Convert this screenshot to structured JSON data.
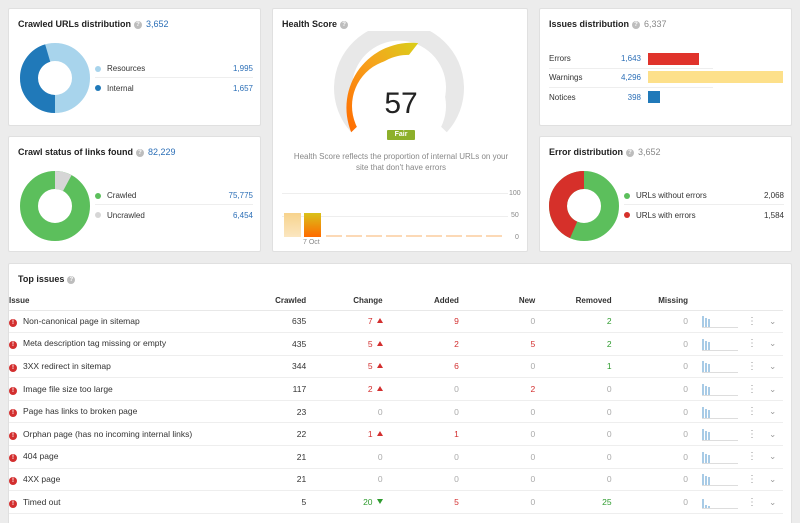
{
  "crawled": {
    "title": "Crawled URLs distribution",
    "total": "3,652",
    "legend": [
      {
        "label": "Resources",
        "value": "1,995",
        "color": "#a8d4ec"
      },
      {
        "label": "Internal",
        "value": "1,657",
        "color": "#2079b9"
      }
    ]
  },
  "health": {
    "title": "Health Score",
    "score": "57",
    "badge": "Fair",
    "description": "Health Score reflects the proportion of internal URLs on your site that don't have errors",
    "axis": [
      "100",
      "50",
      "0"
    ],
    "date_label": "7 Oct"
  },
  "issues_dist": {
    "title": "Issues distribution",
    "total": "6,337",
    "rows": [
      {
        "label": "Errors",
        "value": "1,643",
        "color": "#e0332b",
        "fraction": 0.38
      },
      {
        "label": "Warnings",
        "value": "4,296",
        "color": "#fde08a",
        "fraction": 1.0
      },
      {
        "label": "Notices",
        "value": "398",
        "color": "#2079b9",
        "fraction": 0.09
      }
    ]
  },
  "crawl_status": {
    "title": "Crawl status of links found",
    "total": "82,229",
    "legend": [
      {
        "label": "Crawled",
        "value": "75,775",
        "color": "#5cbf5c"
      },
      {
        "label": "Uncrawled",
        "value": "6,454",
        "color": "#d6d6d6"
      }
    ]
  },
  "error_dist": {
    "title": "Error distribution",
    "total": "3,652",
    "legend": [
      {
        "label": "URLs without errors",
        "value": "2,068",
        "color": "#5cbf5c"
      },
      {
        "label": "URLs with errors",
        "value": "1,584",
        "color": "#d6302a"
      }
    ]
  },
  "top_issues": {
    "title": "Top issues",
    "columns": {
      "issue": "Issue",
      "crawled": "Crawled",
      "change": "Change",
      "added": "Added",
      "new": "New",
      "removed": "Removed",
      "missing": "Missing"
    },
    "rows": [
      {
        "issue": "Non-canonical page in sitemap",
        "crawled": "635",
        "change": "7",
        "change_dir": "up",
        "added": "9",
        "new": "0",
        "removed": "2",
        "missing": "0"
      },
      {
        "issue": "Meta description tag missing or empty",
        "crawled": "435",
        "change": "5",
        "change_dir": "up",
        "added": "2",
        "new": "5",
        "removed": "2",
        "missing": "0"
      },
      {
        "issue": "3XX redirect in sitemap",
        "crawled": "344",
        "change": "5",
        "change_dir": "up",
        "added": "6",
        "new": "0",
        "removed": "1",
        "missing": "0"
      },
      {
        "issue": "Image file size too large",
        "crawled": "117",
        "change": "2",
        "change_dir": "up",
        "added": "0",
        "new": "2",
        "removed": "0",
        "missing": "0"
      },
      {
        "issue": "Page has links to broken page",
        "crawled": "23",
        "change": "0",
        "change_dir": "none",
        "added": "0",
        "new": "0",
        "removed": "0",
        "missing": "0"
      },
      {
        "issue": "Orphan page (has no incoming internal links)",
        "crawled": "22",
        "change": "1",
        "change_dir": "up",
        "added": "1",
        "new": "0",
        "removed": "0",
        "missing": "0"
      },
      {
        "issue": "404 page",
        "crawled": "21",
        "change": "0",
        "change_dir": "none",
        "added": "0",
        "new": "0",
        "removed": "0",
        "missing": "0"
      },
      {
        "issue": "4XX page",
        "crawled": "21",
        "change": "0",
        "change_dir": "none",
        "added": "0",
        "new": "0",
        "removed": "0",
        "missing": "0"
      },
      {
        "issue": "Timed out",
        "crawled": "5",
        "change": "20",
        "change_dir": "down",
        "added": "5",
        "new": "0",
        "removed": "25",
        "missing": "0"
      }
    ]
  }
}
